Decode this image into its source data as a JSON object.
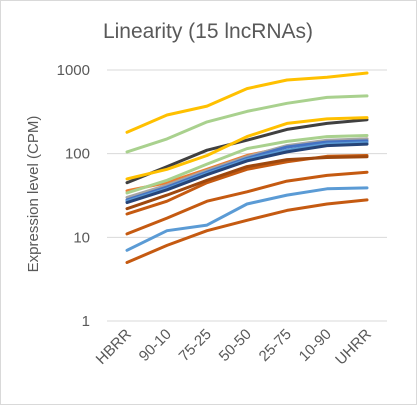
{
  "chart_data": {
    "type": "line",
    "title": "Linearity (15 lncRNAs)",
    "xlabel": "",
    "ylabel": "Expression level (CPM)",
    "categories": [
      "HBRR",
      "90-10",
      "75-25",
      "50-50",
      "25-75",
      "10-90",
      "UHRR"
    ],
    "y_scale": "log",
    "ylim": [
      1,
      1000
    ],
    "y_ticks": [
      "1",
      "10",
      "100",
      "1000"
    ],
    "grid": true,
    "legend": "none",
    "series": [
      {
        "color": "#FFC000",
        "values": [
          180,
          290,
          370,
          600,
          760,
          820,
          920
        ]
      },
      {
        "color": "#A9D18E",
        "values": [
          105,
          150,
          240,
          320,
          400,
          470,
          490
        ]
      },
      {
        "color": "#404040",
        "values": [
          45,
          70,
          110,
          145,
          195,
          230,
          255
        ]
      },
      {
        "color": "#FFC000",
        "values": [
          50,
          65,
          95,
          160,
          230,
          260,
          270
        ]
      },
      {
        "color": "#ED7D31",
        "values": [
          36,
          45,
          65,
          95,
          120,
          140,
          150
        ]
      },
      {
        "color": "#A9D18E",
        "values": [
          34,
          48,
          75,
          115,
          140,
          160,
          165
        ]
      },
      {
        "color": "#A5A5A5",
        "values": [
          30,
          42,
          63,
          92,
          125,
          145,
          150
        ]
      },
      {
        "color": "#4472C4",
        "values": [
          28,
          40,
          60,
          88,
          120,
          138,
          142
        ]
      },
      {
        "color": "#5B9BD5",
        "values": [
          27,
          38,
          58,
          85,
          110,
          130,
          135
        ]
      },
      {
        "color": "#C55A11",
        "values": [
          19,
          27,
          45,
          65,
          80,
          93,
          95
        ]
      },
      {
        "color": "#9E480E",
        "values": [
          22,
          32,
          48,
          70,
          85,
          90,
          92
        ]
      },
      {
        "color": "#C55A11",
        "values": [
          11,
          17,
          27,
          35,
          47,
          55,
          60
        ]
      },
      {
        "color": "#5B9BD5",
        "values": [
          7,
          12,
          14,
          25,
          32,
          38,
          39
        ]
      },
      {
        "color": "#C55A11",
        "values": [
          5,
          8,
          12,
          16,
          21,
          25,
          28
        ]
      },
      {
        "color": "#264478",
        "values": [
          26,
          37,
          56,
          82,
          105,
          125,
          130
        ]
      }
    ]
  }
}
